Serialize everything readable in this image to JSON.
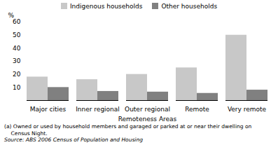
{
  "chart_data": {
    "type": "bar",
    "categories": [
      "Major cities",
      "Inner regional",
      "Outer regional",
      "Remote",
      "Very remote"
    ],
    "series": [
      {
        "name": "Indigenous households",
        "color": "#c8c8c8",
        "values": [
          18,
          16,
          20,
          25,
          50
        ]
      },
      {
        "name": "Other households",
        "color": "#808080",
        "values": [
          10,
          7,
          6.5,
          5.5,
          8
        ]
      }
    ],
    "xlabel": "Remoteness Areas",
    "ylabel": "%",
    "ylim": [
      0,
      60
    ],
    "yticks": [
      10,
      20,
      30,
      40,
      50,
      60
    ],
    "grid": false,
    "legend": "top",
    "annotations": [
      "(a) Owned or used by household members and garaged or parked at or near their dwelling on",
      "    Census Night.",
      "Source: ABS 2006 Census of Population and Housing"
    ]
  }
}
